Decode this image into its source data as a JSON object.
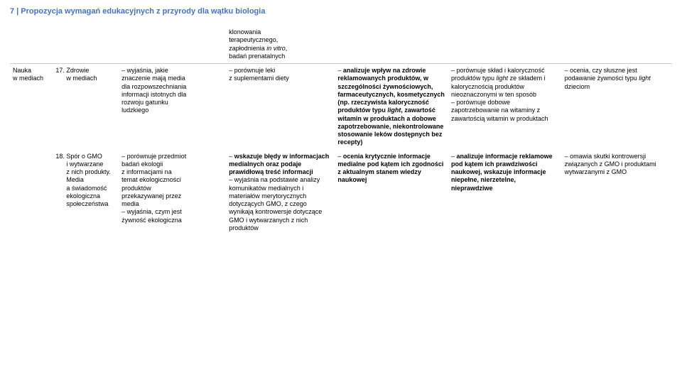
{
  "header": "7 | Propozycja wymagań edukacyjnych z przyrody dla wątku biologia",
  "topcell_html": "klonowania<br>terapeutycznego,<br>zapłodnienia <span class=\"italic\">in vitro</span>,<br>badań prenatalnych",
  "rows": [
    {
      "col0": "Nauka\nw mediach",
      "col1": "17. Zdrowie\n      w mediach",
      "col2": "– wyjaśnia, jakie\nznaczenie mają media\ndla rozpowszechniania\ninformacji istotnych dla\nrozwoju gatunku\nludzkiego",
      "col3": "– porównuje leki\nz suplementami diety",
      "col4_html": "– <span class=\"bold\">analizuje wpływ na zdrowie reklamowanych produktów, w szczególności żywnościowych, farmaceutycznych, kosmetycznych (np. rzeczywista kaloryczność produktów typu <span class=\"italic\">light</span>, zawartość witamin w produktach a dobowe zapotrzebowanie, niekontrolowane stosowanie leków dostępnych bez recepty)</span>",
      "col5_html": "– porównuje skład i kaloryczność produktów typu <span class=\"italic\">light</span> ze składem i kalorycznością produktów nieoznaczonymi w ten sposób<br>– porównuje dobowe zapotrzebowanie na witaminy z zawartością witamin w produktach",
      "col6_html": "– ocenia, czy słuszne jest podawanie żywności typu <span class=\"italic\">light</span> dzieciom"
    },
    {
      "col0": "",
      "col1": "18. Spór o GMO\n      i wytwarzane\n      z nich produkty.\n      Media\n      a świadomość\n      ekologiczna\n      społeczeństwa",
      "col2": "– porównuje przedmiot\nbadań ekologii\nz informacjami na\ntemat ekologiczności\nproduktów\nprzekazywanej przez\nmedia\n– wyjaśnia, czym jest\nżywność ekologiczna",
      "col3_html": "– <span class=\"bold\">wskazuje błędy w informacjach medialnych oraz podaje prawidłową treść informacji</span><br>– wyjaśnia na podstawie analizy komunikatów medialnych i materiałów merytorycznych dotyczących GMO, z czego wynikają kontrowersje dotyczące GMO i wytwarzanych z nich produktów",
      "col4_html": "– <span class=\"bold\">ocenia krytycznie informacje medialne pod kątem ich zgodności z aktualnym stanem wiedzy naukowej</span>",
      "col5_html": "– <span class=\"bold\">analizuje informacje reklamowe pod kątem ich prawdziwości naukowej, wskazuje informacje niepełne, nierzetelne, nieprawdziwe</span>",
      "col6_html": "– omawia skutki kontrowersji związanych z GMO i produktami wytwarzanymi z GMO"
    }
  ]
}
